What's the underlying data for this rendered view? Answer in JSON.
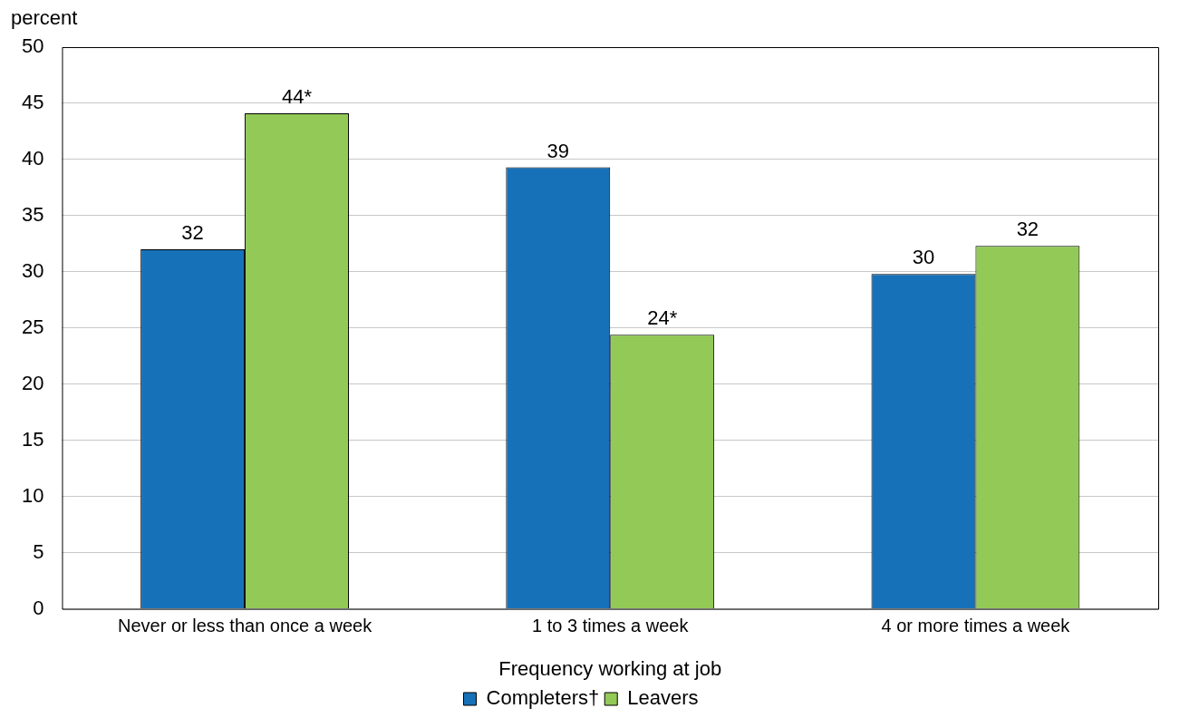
{
  "chart_data": {
    "type": "bar",
    "xlabel": "Frequency working at job",
    "ylabel": "percent",
    "categories": [
      "Never or less than once a week",
      "1 to 3 times a week",
      "4 or more times a week"
    ],
    "series": [
      {
        "name": "Completers†",
        "color": "#1771b8",
        "values": [
          32,
          39.3,
          29.8
        ],
        "value_labels": [
          "32",
          "39",
          "30"
        ]
      },
      {
        "name": "Leavers",
        "color": "#92c957",
        "values": [
          44.1,
          24.4,
          32.3
        ],
        "value_labels": [
          "44*",
          "24*",
          "32"
        ]
      }
    ],
    "ylim": [
      0,
      50
    ],
    "yticks": [
      0,
      5,
      10,
      15,
      20,
      25,
      30,
      35,
      40,
      45,
      50
    ],
    "grid": "y",
    "legend": "bottom"
  }
}
